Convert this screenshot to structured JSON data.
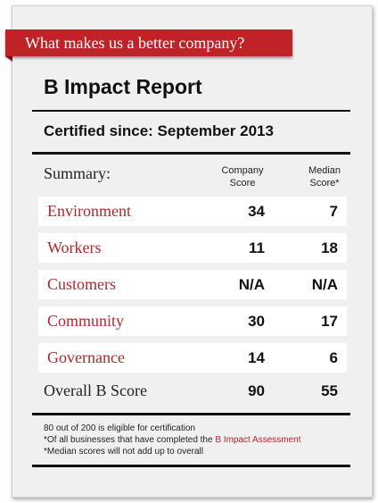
{
  "banner": "What makes us a better company?",
  "title": "B Impact Report",
  "certified_label": "Certified since:",
  "certified_value": "September 2013",
  "summary_label": "Summary:",
  "columns": {
    "company_line1": "Company",
    "company_line2": "Score",
    "median_line1": "Median",
    "median_line2": "Score*"
  },
  "rows": [
    {
      "label": "Environment",
      "company": "34",
      "median": "7"
    },
    {
      "label": "Workers",
      "company": "11",
      "median": "18"
    },
    {
      "label": "Customers",
      "company": "N/A",
      "median": "N/A"
    },
    {
      "label": "Community",
      "company": "30",
      "median": "17"
    },
    {
      "label": "Governance",
      "company": "14",
      "median": "6"
    }
  ],
  "overall": {
    "label": "Overall B Score",
    "company": "90",
    "median": "55"
  },
  "footnotes": {
    "line1": "80 out of 200 is eligible for certification",
    "line2_prefix": "*Of all businesses that have completed the ",
    "line2_link": "B Impact Assessment",
    "line3": "*Median scores will not add up to overall"
  },
  "colors": {
    "accent": "#bf2227",
    "card": "#f0f0f0"
  }
}
